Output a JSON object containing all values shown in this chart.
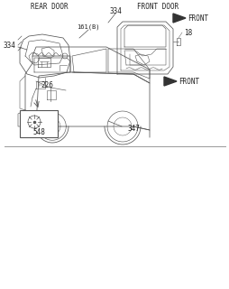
{
  "bg_color": "#ffffff",
  "rear_door_label": "REAR DOOR",
  "front_door_label": "FRONT DOOR",
  "front_label": "FRONT",
  "num_226": "226",
  "num_18": "18",
  "num_334a": "334",
  "num_334b": "334",
  "num_161": "161(B)",
  "num_347": "347",
  "num_548": "548",
  "font_color": "#222222",
  "sketch_color": "#555555",
  "divider_color": "#999999"
}
